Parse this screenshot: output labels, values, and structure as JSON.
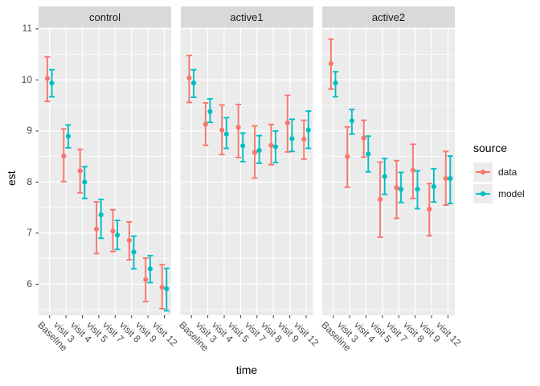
{
  "legend": {
    "title": "source",
    "entries": [
      {
        "label": "data",
        "color": "#F8766D"
      },
      {
        "label": "model",
        "color": "#00BFC4"
      }
    ]
  },
  "theme": {
    "panel_bg": "#EBEBEB",
    "strip_bg": "#D9D9D9",
    "grid_color": "#FFFFFF",
    "axis_text_color": "#4D4D4D",
    "tick_color": "#333333",
    "legend_key_bg": "#ECECEC"
  },
  "chart_data": {
    "type": "scatter",
    "mark": "point-with-errorbar, dodged by source",
    "title": "",
    "xlabel": "time",
    "ylabel": "est",
    "ylim": [
      5.4,
      11.0
    ],
    "y_ticks": [
      11,
      10,
      9,
      8,
      7,
      6
    ],
    "y_minor_ticks": [
      10.5,
      9.5,
      8.5,
      7.5,
      6.5,
      5.5
    ],
    "grid": true,
    "legend_position": "right",
    "categories": [
      "Baseline",
      "visit 3",
      "visit 4",
      "visit 5",
      "visit 7",
      "visit 8",
      "visit 9",
      "visit 12"
    ],
    "facets": [
      {
        "label": "control",
        "series": [
          {
            "name": "data",
            "color": "#F8766D",
            "est": [
              10.03,
              8.51,
              8.22,
              7.08,
              7.04,
              6.86,
              6.09,
              5.94
            ],
            "lo": [
              9.58,
              8.01,
              7.79,
              6.6,
              6.64,
              6.48,
              5.66,
              5.52
            ],
            "hi": [
              10.45,
              9.04,
              8.64,
              7.61,
              7.46,
              7.22,
              6.51,
              6.38
            ]
          },
          {
            "name": "model",
            "color": "#00BFC4",
            "est": [
              9.94,
              8.9,
              8.0,
              7.36,
              6.96,
              6.63,
              6.3,
              5.91
            ],
            "lo": [
              9.67,
              8.67,
              7.68,
              6.9,
              6.68,
              6.3,
              6.03,
              5.48
            ],
            "hi": [
              10.2,
              9.12,
              8.3,
              7.66,
              7.25,
              6.94,
              6.56,
              6.31
            ]
          }
        ]
      },
      {
        "label": "active1",
        "series": [
          {
            "name": "data",
            "color": "#F8766D",
            "est": [
              10.04,
              9.13,
              9.02,
              9.07,
              8.58,
              8.72,
              9.16,
              8.84
            ],
            "lo": [
              9.56,
              8.72,
              8.54,
              8.48,
              8.08,
              8.34,
              8.59,
              8.45
            ],
            "hi": [
              10.48,
              9.55,
              9.51,
              9.52,
              9.1,
              9.13,
              9.7,
              9.21
            ]
          },
          {
            "name": "model",
            "color": "#00BFC4",
            "est": [
              9.94,
              9.38,
              8.94,
              8.71,
              8.62,
              8.69,
              8.85,
              9.02
            ],
            "lo": [
              9.66,
              9.17,
              8.66,
              8.4,
              8.37,
              8.38,
              8.6,
              8.66
            ],
            "hi": [
              10.2,
              9.63,
              9.26,
              8.96,
              8.91,
              9.0,
              9.23,
              9.39
            ]
          }
        ]
      },
      {
        "label": "active2",
        "series": [
          {
            "name": "data",
            "color": "#F8766D",
            "est": [
              10.32,
              8.5,
              8.86,
              7.66,
              7.89,
              8.23,
              7.47,
              8.07
            ],
            "lo": [
              9.82,
              7.9,
              8.49,
              6.92,
              7.29,
              7.68,
              6.95,
              7.55
            ],
            "hi": [
              10.8,
              9.08,
              9.21,
              8.39,
              8.42,
              8.74,
              7.97,
              8.6
            ]
          },
          {
            "name": "model",
            "color": "#00BFC4",
            "est": [
              9.94,
              9.2,
              8.55,
              8.11,
              7.86,
              7.86,
              7.91,
              8.07
            ],
            "lo": [
              9.67,
              8.94,
              8.2,
              7.76,
              7.6,
              7.48,
              7.61,
              7.58
            ],
            "hi": [
              10.16,
              9.42,
              8.9,
              8.46,
              8.19,
              8.22,
              8.26,
              8.51
            ]
          }
        ]
      }
    ]
  }
}
